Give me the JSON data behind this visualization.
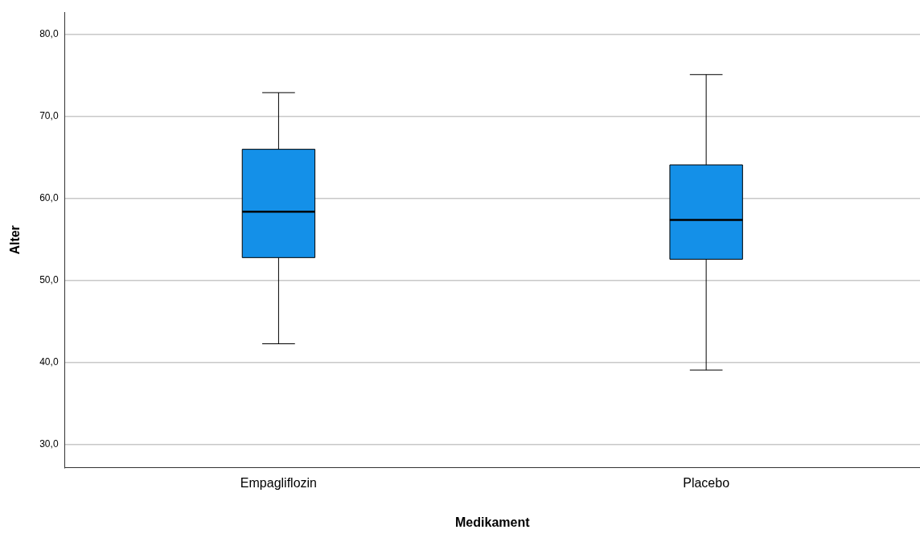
{
  "chart_data": {
    "type": "box",
    "xlabel": "Medikament",
    "ylabel": "Alter",
    "categories": [
      "Empagliflozin",
      "Placebo"
    ],
    "boxes": [
      {
        "low": 42.3,
        "q1": 52.8,
        "median": 58.4,
        "q3": 66.0,
        "high": 72.9
      },
      {
        "low": 39.1,
        "q1": 52.6,
        "median": 57.4,
        "q3": 64.1,
        "high": 75.1
      }
    ],
    "color": "#1490e8",
    "ylim": [
      27.2,
      82.7
    ],
    "yticks": [
      {
        "value": 30,
        "label": "30,0"
      },
      {
        "value": 40,
        "label": "40,0"
      },
      {
        "value": 50,
        "label": "50,0"
      },
      {
        "value": 60,
        "label": "60,0"
      },
      {
        "value": 70,
        "label": "70,0"
      },
      {
        "value": 80,
        "label": "80,0"
      }
    ],
    "grid": "y",
    "legend": false
  }
}
